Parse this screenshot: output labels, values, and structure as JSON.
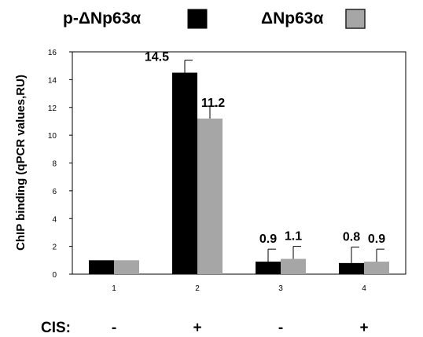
{
  "legend": [
    {
      "name": "p-ΔNp63α",
      "color": "#000000"
    },
    {
      "name": "ΔNp63α",
      "color": "#a6a6a6"
    }
  ],
  "chart_data": {
    "type": "bar",
    "title": "",
    "xlabel": "",
    "ylabel": "ChIP binding (qPCR values,RU)",
    "ylim": [
      0,
      16
    ],
    "yticks": [
      0,
      2,
      4,
      6,
      8,
      10,
      12,
      14,
      16
    ],
    "grid": false,
    "legend_position": "top",
    "categories": [
      "1",
      "2",
      "3",
      "4"
    ],
    "series": [
      {
        "name": "p-ΔNp63α",
        "color": "#000000",
        "values": [
          1.0,
          14.5,
          0.9,
          0.8
        ],
        "errors": [
          null,
          0.9,
          0.9,
          1.15
        ],
        "data_labels": [
          "",
          "14.5",
          "0.9",
          "0.8"
        ]
      },
      {
        "name": "ΔNp63α",
        "color": "#a6a6a6",
        "values": [
          1.0,
          11.2,
          1.1,
          0.9
        ],
        "errors": [
          null,
          0.9,
          0.9,
          0.9
        ],
        "data_labels": [
          "",
          "11.2",
          "1.1",
          "0.9"
        ]
      }
    ]
  },
  "cis": {
    "label": "CIS:",
    "values": [
      "-",
      "+",
      "-",
      "+"
    ]
  }
}
